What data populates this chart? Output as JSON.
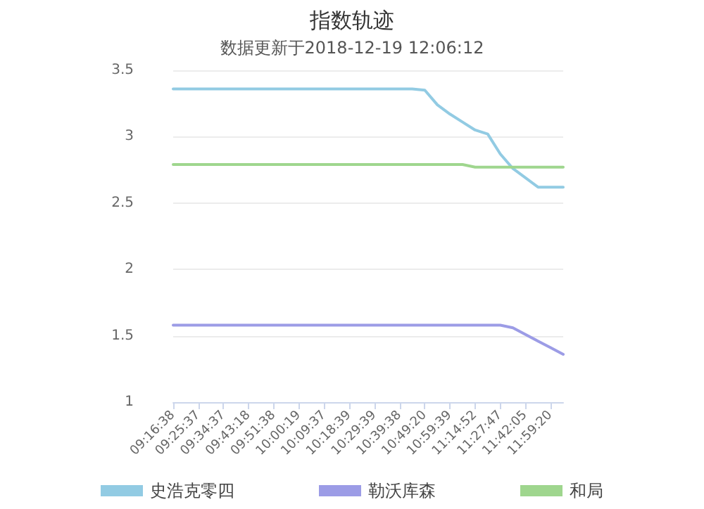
{
  "chart_data": {
    "type": "line",
    "title": "指数轨迹",
    "subtitle": "数据更新于2018-12-19 12:06:12",
    "categories": [
      "09:16:38",
      null,
      "09:25:37",
      null,
      "09:34:37",
      null,
      "09:43:18",
      null,
      "09:51:38",
      null,
      "10:00:19",
      null,
      "10:09:37",
      null,
      "10:18:39",
      null,
      "10:29:39",
      null,
      "10:39:38",
      null,
      "10:49:20",
      null,
      "10:59:39",
      null,
      "11:14:52",
      null,
      "11:27:47",
      null,
      "11:42:05",
      null,
      "11:59:20",
      null
    ],
    "series": [
      {
        "name": "史浩克零四",
        "color": "#92cbe3",
        "values": [
          3.36,
          3.36,
          3.36,
          3.36,
          3.36,
          3.36,
          3.36,
          3.36,
          3.36,
          3.36,
          3.36,
          3.36,
          3.36,
          3.36,
          3.36,
          3.36,
          3.36,
          3.36,
          3.36,
          3.36,
          3.35,
          3.24,
          3.17,
          3.11,
          3.05,
          3.02,
          2.87,
          2.76,
          2.69,
          2.62,
          2.62,
          2.62
        ]
      },
      {
        "name": "勒沃库森",
        "color": "#9c9ce6",
        "values": [
          1.58,
          1.58,
          1.58,
          1.58,
          1.58,
          1.58,
          1.58,
          1.58,
          1.58,
          1.58,
          1.58,
          1.58,
          1.58,
          1.58,
          1.58,
          1.58,
          1.58,
          1.58,
          1.58,
          1.58,
          1.58,
          1.58,
          1.58,
          1.58,
          1.58,
          1.58,
          1.58,
          1.56,
          1.51,
          1.46,
          1.41,
          1.36
        ]
      },
      {
        "name": "和局",
        "color": "#9fd68e",
        "values": [
          2.79,
          2.79,
          2.79,
          2.79,
          2.79,
          2.79,
          2.79,
          2.79,
          2.79,
          2.79,
          2.79,
          2.79,
          2.79,
          2.79,
          2.79,
          2.79,
          2.79,
          2.79,
          2.79,
          2.79,
          2.79,
          2.79,
          2.79,
          2.79,
          2.77,
          2.77,
          2.77,
          2.77,
          2.77,
          2.77,
          2.77,
          2.77
        ]
      }
    ],
    "ylim": [
      1,
      3.5
    ],
    "yticks": [
      1,
      1.5,
      2,
      2.5,
      3,
      3.5
    ],
    "grid": "y",
    "legend": "bottom",
    "marker": "none",
    "line_style": "solid"
  }
}
